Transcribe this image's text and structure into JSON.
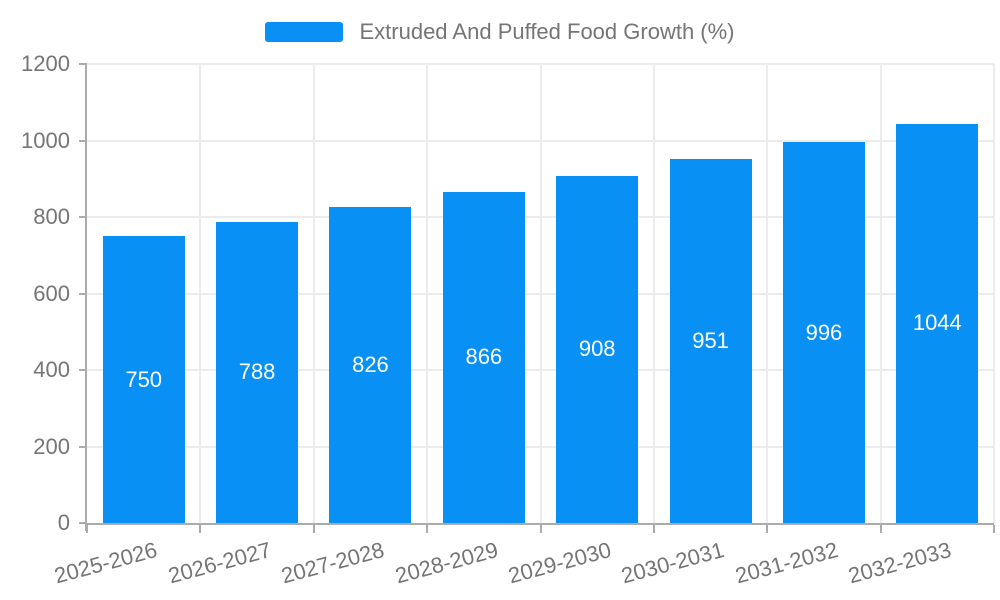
{
  "legend": {
    "label": "Extruded And Puffed Food Growth (%)"
  },
  "chart_data": {
    "type": "bar",
    "title": "Extruded And Puffed Food Growth (%)",
    "categories": [
      "2025-2026",
      "2026-2027",
      "2027-2028",
      "2028-2029",
      "2029-2030",
      "2030-2031",
      "2031-2032",
      "2032-2033"
    ],
    "values": [
      750,
      788,
      826,
      866,
      908,
      951,
      996,
      1044
    ],
    "xlabel": "",
    "ylabel": "",
    "ylim": [
      0,
      1200
    ],
    "yticks": [
      0,
      200,
      400,
      600,
      800,
      1000,
      1200
    ],
    "grid": true,
    "legend_position": "top-center",
    "value_labels": "inside-center",
    "colors": {
      "bar": "#0890F5",
      "value_label": "#FFFFFF",
      "axis_line": "#ABABAB",
      "gridline": "#ECECEC",
      "tick_label": "#757575"
    }
  }
}
